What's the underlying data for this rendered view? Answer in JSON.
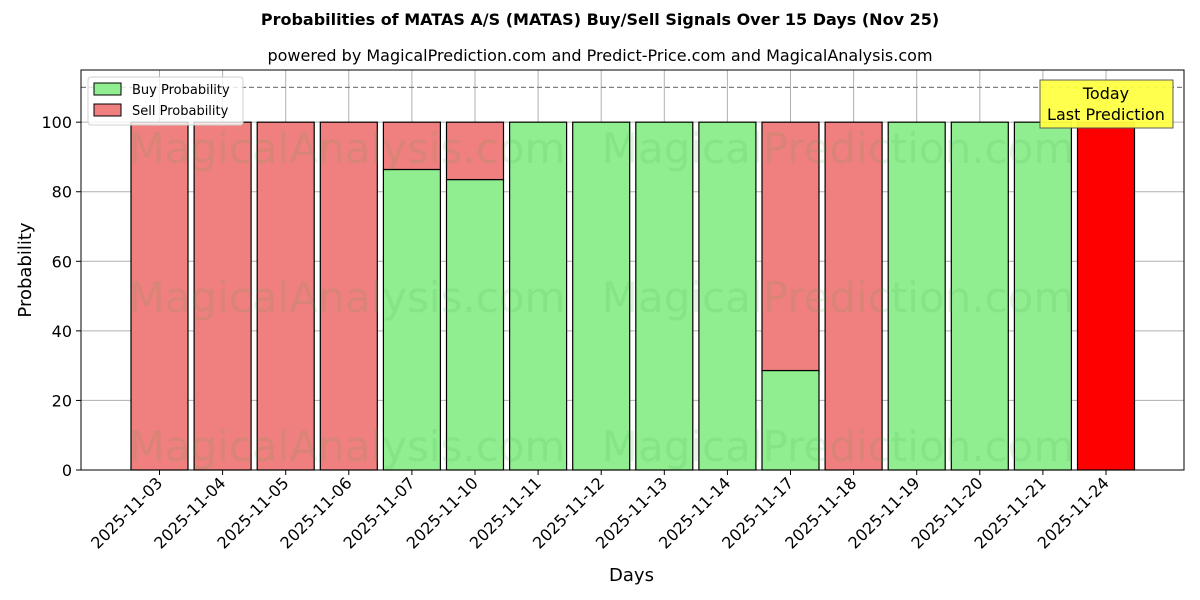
{
  "header": {
    "title": "Probabilities of MATAS A/S (MATAS) Buy/Sell Signals Over 15 Days (Nov 25)",
    "subtitle": "powered by MagicalPrediction.com and Predict-Price.com and MagicalAnalysis.com"
  },
  "legend": {
    "buy": "Buy Probability",
    "sell": "Sell Probability"
  },
  "annotation": {
    "line1": "Today",
    "line2": "Last Prediction"
  },
  "watermarks": [
    "MagicalAnalysis.com",
    "MagicalPrediction.com"
  ],
  "colors": {
    "buy": "#90ee90",
    "sell": "#f08080",
    "today": "#ff0000",
    "annotation_bg": "#ffff44"
  },
  "chart_data": {
    "type": "bar",
    "stacked": true,
    "title": "Probabilities of MATAS A/S (MATAS) Buy/Sell Signals Over 15 Days (Nov 25)",
    "subtitle": "powered by MagicalPrediction.com and Predict-Price.com and MagicalAnalysis.com",
    "xlabel": "Days",
    "ylabel": "Probability",
    "ylim": [
      0,
      115
    ],
    "yticks": [
      0,
      20,
      40,
      60,
      80,
      100
    ],
    "reference_line": 110,
    "grid": true,
    "legend_position": "upper left",
    "categories": [
      "2025-11-03",
      "2025-11-04",
      "2025-11-05",
      "2025-11-06",
      "2025-11-07",
      "2025-11-10",
      "2025-11-11",
      "2025-11-12",
      "2025-11-13",
      "2025-11-14",
      "2025-11-17",
      "2025-11-18",
      "2025-11-19",
      "2025-11-20",
      "2025-11-21",
      "2025-11-24"
    ],
    "series": [
      {
        "name": "Buy Probability",
        "values": [
          0,
          0,
          0,
          0,
          86.4,
          83.5,
          100,
          100,
          100,
          100,
          28.6,
          0,
          100,
          100,
          100,
          0
        ]
      },
      {
        "name": "Sell Probability",
        "values": [
          100,
          100,
          100,
          100,
          13.6,
          16.5,
          0,
          0,
          0,
          0,
          71.4,
          100,
          0,
          0,
          0,
          100
        ]
      }
    ],
    "annotations": [
      {
        "text": "Today\nLast Prediction",
        "x": "2025-11-24"
      }
    ]
  }
}
